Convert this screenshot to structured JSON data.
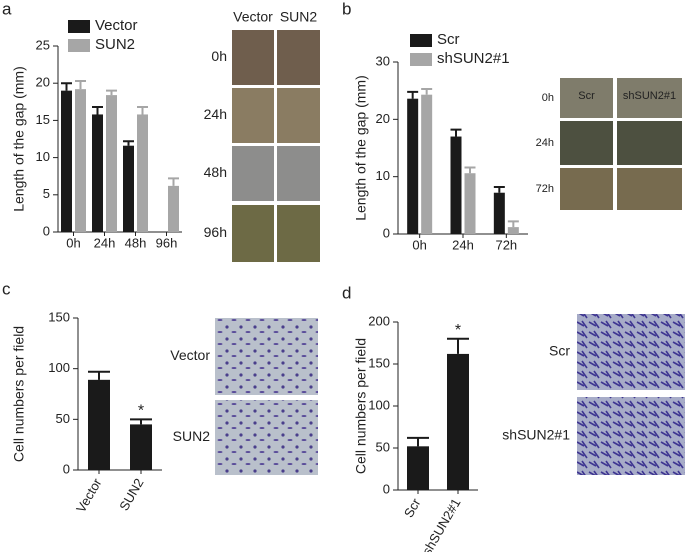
{
  "panels": [
    "a",
    "b",
    "c",
    "d"
  ],
  "chart_data": [
    {
      "type": "bar",
      "ylabel": "Length of the gap (mm)",
      "categories": [
        "0h",
        "24h",
        "48h",
        "96h"
      ],
      "ylim": [
        0,
        25
      ],
      "yticks": [
        0,
        5,
        10,
        15,
        20,
        25
      ],
      "series": [
        {
          "name": "Vector",
          "color": "#1a1a1a",
          "values": [
            19,
            15.8,
            11.6,
            null
          ],
          "errors": [
            1,
            1,
            0.6,
            null
          ]
        },
        {
          "name": "SUN2",
          "color": "#a6a6a6",
          "values": [
            19.2,
            18.4,
            15.8,
            6.2
          ],
          "errors": [
            1.1,
            0.6,
            1,
            1
          ]
        }
      ]
    },
    {
      "type": "bar",
      "ylabel": "Length of the gap (mm)",
      "categories": [
        "0h",
        "24h",
        "72h"
      ],
      "ylim": [
        0,
        30
      ],
      "yticks": [
        0,
        10,
        20,
        30
      ],
      "series": [
        {
          "name": "Scr",
          "color": "#1a1a1a",
          "values": [
            23.6,
            17,
            7.2
          ],
          "errors": [
            1.2,
            1.2,
            1
          ]
        },
        {
          "name": "shSUN2#1",
          "color": "#a6a6a6",
          "values": [
            24.3,
            10.6,
            1.2
          ],
          "errors": [
            1,
            1,
            1
          ]
        }
      ]
    },
    {
      "type": "bar",
      "ylabel": "Cell numbers per field",
      "categories": [
        "Vector",
        "SUN2"
      ],
      "ylim": [
        0,
        150
      ],
      "yticks": [
        0,
        50,
        100,
        150
      ],
      "color": "#1a1a1a",
      "values": [
        89,
        45
      ],
      "errors": [
        8,
        5
      ],
      "annotations": [
        {
          "text": "*",
          "category": "SUN2"
        }
      ]
    },
    {
      "type": "bar",
      "ylabel": "Cell numbers per field",
      "categories": [
        "Scr",
        "shSUN2#1"
      ],
      "ylim": [
        0,
        200
      ],
      "yticks": [
        0,
        50,
        100,
        150,
        200
      ],
      "color": "#1a1a1a",
      "values": [
        52,
        162
      ],
      "errors": [
        10,
        18
      ],
      "annotations": [
        {
          "text": "*",
          "category": "shSUN2#1"
        }
      ]
    }
  ],
  "images": [
    {
      "columns": [
        "Vector",
        "SUN2"
      ],
      "rows": [
        "0h",
        "24h",
        "48h",
        "96h"
      ]
    },
    {
      "columns": [
        "Scr",
        "shSUN2#1"
      ],
      "rows": [
        "0h",
        "24h",
        "72h"
      ]
    },
    {
      "rows": [
        "Vector",
        "SUN2"
      ]
    },
    {
      "rows": [
        "Scr",
        "shSUN2#1"
      ]
    }
  ]
}
